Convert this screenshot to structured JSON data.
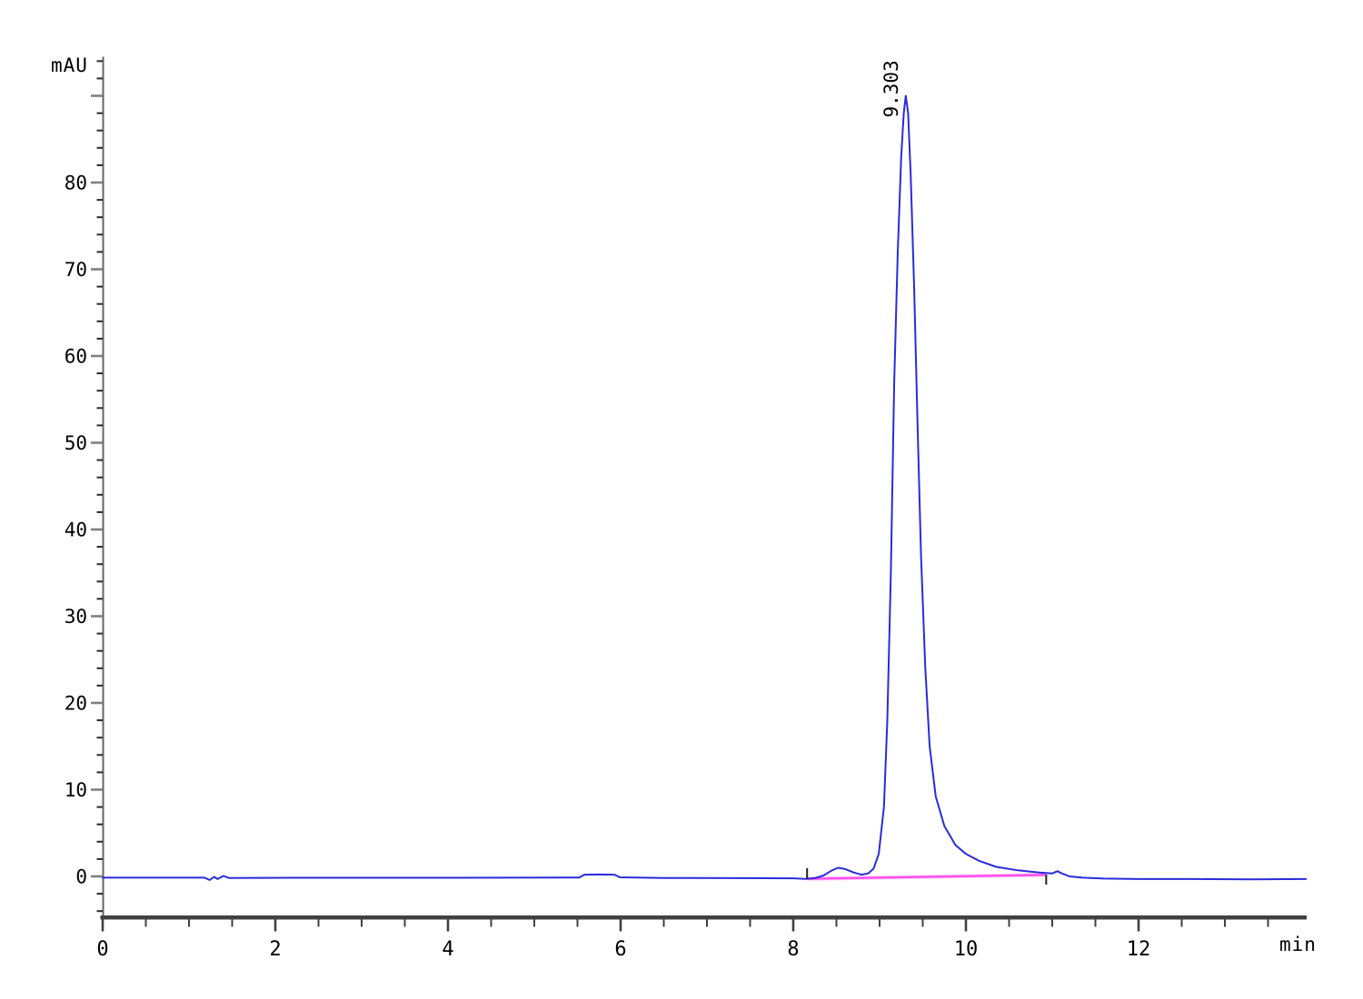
{
  "chart_data": {
    "type": "line",
    "title": "",
    "xlabel": "min",
    "ylabel": "mAU",
    "legend": "none",
    "grid": false,
    "x_axis": {
      "range": [
        0,
        13.94
      ],
      "major_ticks": [
        0,
        2,
        4,
        6,
        8,
        10,
        12
      ],
      "minor_step": 0.5,
      "minor_min": 0,
      "minor_max": 13.5
    },
    "y_axis": {
      "range": [
        -4.7,
        94.5
      ],
      "major_ticks": [
        0,
        10,
        20,
        30,
        40,
        50,
        60,
        70,
        80,
        90
      ],
      "labeled_ticks": [
        0,
        10,
        20,
        30,
        40,
        50,
        60,
        70,
        80
      ],
      "minor_step": 2,
      "minor_min": -4,
      "minor_max": 94
    },
    "series": [
      {
        "name": "uv-signal",
        "color": "#2b2bdc",
        "points": [
          [
            0,
            -0.15
          ],
          [
            0.6,
            -0.15
          ],
          [
            1.18,
            -0.15
          ],
          [
            1.24,
            -0.42
          ],
          [
            1.29,
            -0.05
          ],
          [
            1.33,
            -0.3
          ],
          [
            1.4,
            0.05
          ],
          [
            1.46,
            -0.18
          ],
          [
            2.2,
            -0.16
          ],
          [
            3.5,
            -0.16
          ],
          [
            4.8,
            -0.15
          ],
          [
            5.52,
            -0.13
          ],
          [
            5.58,
            0.2
          ],
          [
            5.75,
            0.22
          ],
          [
            5.93,
            0.2
          ],
          [
            5.99,
            -0.1
          ],
          [
            6.5,
            -0.18
          ],
          [
            7.3,
            -0.2
          ],
          [
            8.0,
            -0.22
          ],
          [
            8.14,
            -0.28
          ],
          [
            8.25,
            -0.2
          ],
          [
            8.35,
            0.1
          ],
          [
            8.45,
            0.7
          ],
          [
            8.52,
            1.0
          ],
          [
            8.6,
            0.85
          ],
          [
            8.7,
            0.45
          ],
          [
            8.79,
            0.2
          ],
          [
            8.87,
            0.35
          ],
          [
            8.93,
            0.9
          ],
          [
            8.99,
            2.6
          ],
          [
            9.05,
            8
          ],
          [
            9.09,
            18
          ],
          [
            9.13,
            35
          ],
          [
            9.17,
            57
          ],
          [
            9.21,
            72
          ],
          [
            9.25,
            83
          ],
          [
            9.28,
            88
          ],
          [
            9.303,
            90
          ],
          [
            9.33,
            88
          ],
          [
            9.36,
            81
          ],
          [
            9.4,
            68
          ],
          [
            9.44,
            52
          ],
          [
            9.48,
            37
          ],
          [
            9.53,
            24
          ],
          [
            9.58,
            15
          ],
          [
            9.65,
            9.2
          ],
          [
            9.75,
            5.8
          ],
          [
            9.88,
            3.6
          ],
          [
            10.0,
            2.6
          ],
          [
            10.15,
            1.8
          ],
          [
            10.35,
            1.1
          ],
          [
            10.6,
            0.7
          ],
          [
            10.85,
            0.45
          ],
          [
            11.0,
            0.35
          ],
          [
            11.06,
            0.6
          ],
          [
            11.12,
            0.3
          ],
          [
            11.2,
            0.0
          ],
          [
            11.35,
            -0.15
          ],
          [
            11.6,
            -0.25
          ],
          [
            12.0,
            -0.3
          ],
          [
            12.6,
            -0.3
          ],
          [
            13.3,
            -0.33
          ],
          [
            13.94,
            -0.3
          ]
        ]
      },
      {
        "name": "integration-baseline",
        "color": "#ff4cf0",
        "points": [
          [
            8.16,
            -0.28
          ],
          [
            10.93,
            0.18
          ]
        ]
      }
    ],
    "peaks": [
      {
        "retention_time": 9.303,
        "label": "9.303",
        "height_mAU": 90
      }
    ],
    "integration_marks": [
      {
        "t": 8.16,
        "v_from": -0.3,
        "v_to": 0.95
      },
      {
        "t": 10.93,
        "v_from": -0.95,
        "v_to": 0.2
      }
    ],
    "colors": {
      "axis": "#414141",
      "major_tick": "#808080",
      "minor_tick": "#2a2a2a",
      "text": "#000000",
      "signal": "#2b2bdc",
      "baseline_pink": "#ff4cf0"
    }
  }
}
